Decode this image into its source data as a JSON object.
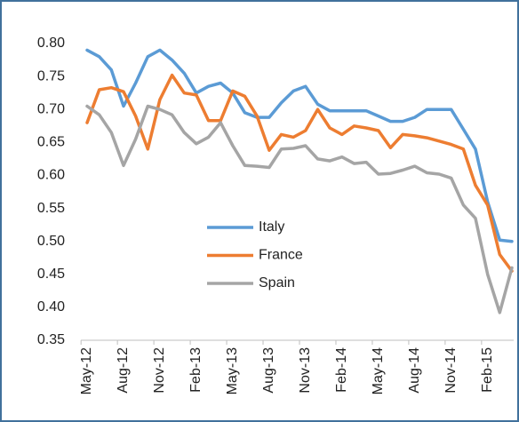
{
  "chart_data": {
    "type": "line",
    "categories": [
      "May-12",
      null,
      null,
      "Aug-12",
      null,
      null,
      "Nov-12",
      null,
      null,
      "Feb-13",
      null,
      null,
      "May-13",
      null,
      null,
      "Aug-13",
      null,
      null,
      "Nov-13",
      null,
      null,
      "Feb-14",
      null,
      null,
      "May-14",
      null,
      null,
      "Aug-14",
      null,
      null,
      "Nov-14",
      null,
      null,
      "Feb-15",
      null,
      null
    ],
    "series": [
      {
        "name": "Italy",
        "color": "#5b9bd5",
        "values": [
          0.79,
          0.78,
          0.76,
          0.705,
          0.74,
          0.78,
          0.79,
          0.775,
          0.755,
          0.725,
          0.735,
          0.74,
          0.725,
          0.695,
          0.688,
          0.688,
          0.71,
          0.728,
          0.735,
          0.708,
          0.698,
          0.698,
          0.698,
          0.698,
          0.69,
          0.682,
          0.682,
          0.688,
          0.7,
          0.7,
          0.7,
          0.67,
          0.64,
          0.56,
          0.502,
          0.5
        ]
      },
      {
        "name": "France",
        "color": "#ed7d31",
        "values": [
          0.68,
          0.73,
          0.733,
          0.727,
          0.69,
          0.64,
          0.715,
          0.752,
          0.725,
          0.722,
          0.683,
          0.683,
          0.728,
          0.72,
          0.69,
          0.638,
          0.662,
          0.658,
          0.668,
          0.7,
          0.672,
          0.662,
          0.675,
          0.672,
          0.668,
          0.642,
          0.662,
          0.66,
          0.657,
          0.652,
          0.647,
          0.64,
          0.585,
          0.555,
          0.48,
          0.455
        ]
      },
      {
        "name": "Spain",
        "color": "#a5a5a5",
        "values": [
          0.705,
          0.692,
          0.665,
          0.615,
          0.655,
          0.705,
          0.7,
          0.692,
          0.665,
          0.648,
          0.658,
          0.68,
          0.645,
          0.615,
          0.614,
          0.612,
          0.64,
          0.641,
          0.645,
          0.625,
          0.622,
          0.628,
          0.618,
          0.62,
          0.602,
          0.603,
          0.608,
          0.614,
          0.604,
          0.602,
          0.596,
          0.555,
          0.535,
          0.45,
          0.392,
          0.46
        ]
      }
    ],
    "ylim": [
      0.35,
      0.8
    ],
    "yticks": [
      {
        "value": 0.35,
        "label": "0.35"
      },
      {
        "value": 0.4,
        "label": "0.40"
      },
      {
        "value": 0.45,
        "label": "0.45"
      },
      {
        "value": 0.5,
        "label": "0.50"
      },
      {
        "value": 0.55,
        "label": "0.55"
      },
      {
        "value": 0.6,
        "label": "0.60"
      },
      {
        "value": 0.65,
        "label": "0.65"
      },
      {
        "value": 0.7,
        "label": "0.70"
      },
      {
        "value": 0.75,
        "label": "0.75"
      },
      {
        "value": 0.8,
        "label": "0.80"
      }
    ],
    "grid": false,
    "legend_position": "center"
  }
}
